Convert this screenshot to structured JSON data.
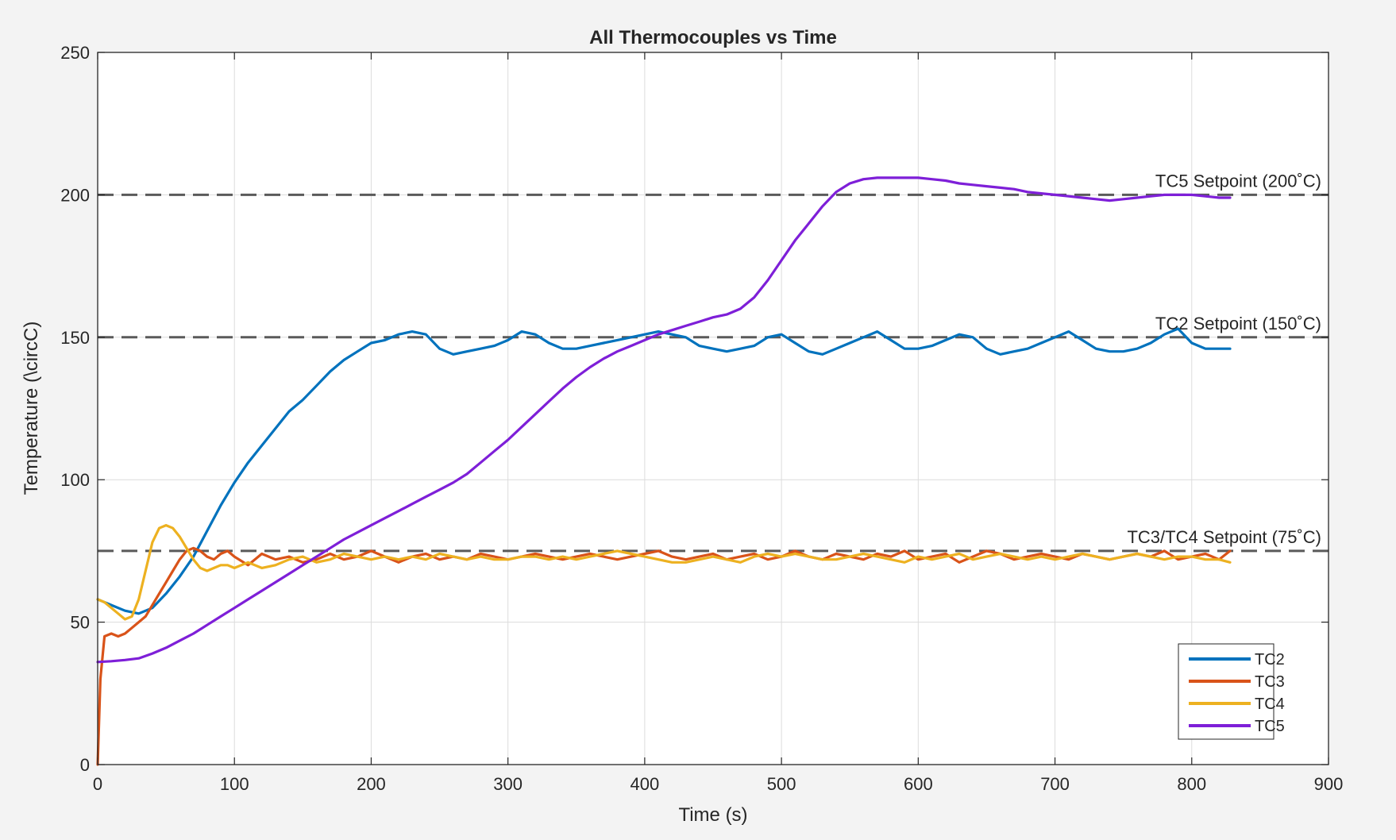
{
  "chart_data": {
    "type": "line",
    "title": "All Thermocouples vs Time",
    "xlabel": "Time (s)",
    "ylabel": "Temperature (\\circC)",
    "xlim": [
      0,
      900
    ],
    "ylim": [
      0,
      250
    ],
    "xticks": [
      0,
      100,
      200,
      300,
      400,
      500,
      600,
      700,
      800,
      900
    ],
    "yticks": [
      0,
      50,
      100,
      150,
      200,
      250
    ],
    "grid": true,
    "legend_position": "bottom-right",
    "series": [
      {
        "name": "TC2",
        "color": "#0072bd",
        "x": [
          0,
          10,
          20,
          30,
          40,
          50,
          60,
          70,
          80,
          90,
          100,
          110,
          120,
          130,
          140,
          150,
          160,
          170,
          180,
          190,
          200,
          210,
          220,
          230,
          240,
          250,
          260,
          270,
          280,
          290,
          300,
          310,
          320,
          330,
          340,
          350,
          360,
          370,
          380,
          390,
          400,
          410,
          420,
          430,
          440,
          450,
          460,
          470,
          480,
          490,
          500,
          510,
          520,
          530,
          540,
          550,
          560,
          570,
          580,
          590,
          600,
          610,
          620,
          630,
          640,
          650,
          660,
          670,
          680,
          690,
          700,
          710,
          720,
          730,
          740,
          750,
          760,
          770,
          780,
          790,
          800,
          810,
          820,
          828
        ],
        "y": [
          58,
          56,
          54,
          53,
          55,
          60,
          66,
          73,
          82,
          91,
          99,
          106,
          112,
          118,
          124,
          128,
          133,
          138,
          142,
          145,
          148,
          149,
          151,
          152,
          151,
          146,
          144,
          145,
          146,
          147,
          149,
          152,
          151,
          148,
          146,
          146,
          147,
          148,
          149,
          150,
          151,
          152,
          151,
          150,
          147,
          146,
          145,
          146,
          147,
          150,
          151,
          148,
          145,
          144,
          146,
          148,
          150,
          152,
          149,
          146,
          146,
          147,
          149,
          151,
          150,
          146,
          144,
          145,
          146,
          148,
          150,
          152,
          149,
          146,
          145,
          145,
          146,
          148,
          151,
          153,
          148,
          146,
          146,
          146
        ]
      },
      {
        "name": "TC3",
        "color": "#d95319",
        "x": [
          0,
          2,
          5,
          10,
          15,
          20,
          25,
          30,
          35,
          40,
          45,
          50,
          55,
          60,
          65,
          70,
          75,
          80,
          85,
          90,
          95,
          100,
          110,
          120,
          130,
          140,
          150,
          160,
          170,
          180,
          190,
          200,
          210,
          220,
          230,
          240,
          250,
          260,
          270,
          280,
          290,
          300,
          310,
          320,
          330,
          340,
          350,
          360,
          370,
          380,
          390,
          400,
          410,
          420,
          430,
          440,
          450,
          460,
          470,
          480,
          490,
          500,
          510,
          520,
          530,
          540,
          550,
          560,
          570,
          580,
          590,
          600,
          610,
          620,
          630,
          640,
          650,
          660,
          670,
          680,
          690,
          700,
          710,
          720,
          730,
          740,
          750,
          760,
          770,
          780,
          790,
          800,
          810,
          820,
          828
        ],
        "y": [
          0,
          30,
          45,
          46,
          45,
          46,
          48,
          50,
          52,
          56,
          60,
          64,
          68,
          72,
          75,
          76,
          75,
          73,
          72,
          74,
          75,
          73,
          70,
          74,
          72,
          73,
          71,
          72,
          74,
          72,
          73,
          75,
          73,
          71,
          73,
          74,
          72,
          73,
          72,
          74,
          73,
          72,
          73,
          74,
          73,
          72,
          73,
          74,
          73,
          72,
          73,
          74,
          75,
          73,
          72,
          73,
          74,
          72,
          73,
          74,
          72,
          73,
          75,
          73,
          72,
          74,
          73,
          72,
          74,
          73,
          75,
          72,
          73,
          74,
          71,
          73,
          75,
          74,
          72,
          73,
          74,
          73,
          72,
          74,
          73,
          72,
          73,
          74,
          73,
          75,
          72,
          73,
          74,
          72,
          75
        ]
      },
      {
        "name": "TC4",
        "color": "#edb120",
        "x": [
          0,
          5,
          10,
          15,
          20,
          25,
          30,
          35,
          40,
          45,
          50,
          55,
          60,
          65,
          70,
          75,
          80,
          85,
          90,
          95,
          100,
          110,
          120,
          130,
          140,
          150,
          160,
          170,
          180,
          190,
          200,
          210,
          220,
          230,
          240,
          250,
          260,
          270,
          280,
          290,
          300,
          310,
          320,
          330,
          340,
          350,
          360,
          370,
          380,
          390,
          400,
          410,
          420,
          430,
          440,
          450,
          460,
          470,
          480,
          490,
          500,
          510,
          520,
          530,
          540,
          550,
          560,
          570,
          580,
          590,
          600,
          610,
          620,
          630,
          640,
          650,
          660,
          670,
          680,
          690,
          700,
          710,
          720,
          730,
          740,
          750,
          760,
          770,
          780,
          790,
          800,
          810,
          820,
          828
        ],
        "y": [
          58,
          57,
          55,
          53,
          51,
          52,
          58,
          68,
          78,
          83,
          84,
          83,
          80,
          76,
          72,
          69,
          68,
          69,
          70,
          70,
          69,
          71,
          69,
          70,
          72,
          73,
          71,
          72,
          74,
          73,
          72,
          73,
          72,
          73,
          72,
          74,
          73,
          72,
          73,
          72,
          72,
          73,
          73,
          72,
          73,
          72,
          73,
          74,
          75,
          74,
          73,
          72,
          71,
          71,
          72,
          73,
          72,
          71,
          73,
          74,
          73,
          74,
          73,
          72,
          72,
          73,
          74,
          73,
          72,
          71,
          73,
          72,
          73,
          74,
          72,
          73,
          74,
          73,
          72,
          73,
          72,
          73,
          74,
          73,
          72,
          73,
          74,
          73,
          72,
          73,
          73,
          72,
          72,
          71
        ]
      },
      {
        "name": "TC5",
        "color": "#7e1fd8",
        "x": [
          0,
          10,
          20,
          30,
          40,
          50,
          60,
          70,
          80,
          90,
          100,
          110,
          120,
          130,
          140,
          150,
          160,
          170,
          180,
          190,
          200,
          210,
          220,
          230,
          240,
          250,
          260,
          270,
          280,
          290,
          300,
          310,
          320,
          330,
          340,
          350,
          360,
          370,
          380,
          390,
          400,
          410,
          420,
          430,
          440,
          450,
          460,
          470,
          480,
          490,
          500,
          510,
          520,
          530,
          540,
          550,
          560,
          570,
          580,
          590,
          600,
          610,
          620,
          630,
          640,
          650,
          660,
          670,
          680,
          690,
          700,
          710,
          720,
          730,
          740,
          750,
          760,
          770,
          780,
          790,
          800,
          810,
          820,
          828
        ],
        "y": [
          36,
          36.3,
          36.7,
          37.3,
          39,
          41,
          43.5,
          46,
          49,
          52,
          55,
          58,
          61,
          64,
          67,
          70,
          73,
          76,
          79,
          81.5,
          84,
          86.5,
          89,
          91.5,
          94,
          96.5,
          99,
          102,
          106,
          110,
          114,
          118.5,
          123,
          127.5,
          132,
          136,
          139.5,
          142.5,
          145,
          147,
          149,
          151,
          152.5,
          154,
          155.5,
          157,
          158,
          160,
          164,
          170,
          177,
          184,
          190,
          196,
          201,
          204,
          205.5,
          206,
          206,
          206,
          206,
          205.5,
          205,
          204,
          203.5,
          203,
          202.5,
          202,
          201,
          200.5,
          200,
          199.5,
          199,
          198.5,
          198,
          198.5,
          199,
          199.5,
          200,
          200,
          200,
          199.5,
          199,
          199
        ]
      }
    ],
    "reference_lines": [
      {
        "y": 200,
        "label": "TC5 Setpoint (200˚C)"
      },
      {
        "y": 150,
        "label": "TC2 Setpoint (150˚C)"
      },
      {
        "y": 75,
        "label": "TC3/TC4 Setpoint (75˚C)"
      }
    ]
  }
}
